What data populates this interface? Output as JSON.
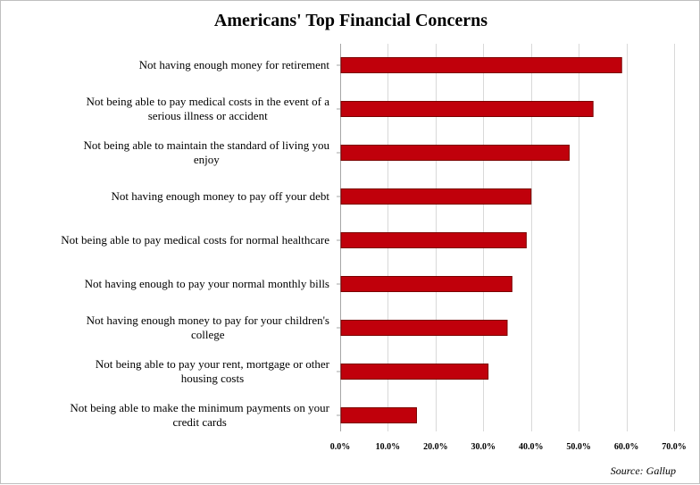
{
  "chart_data": {
    "type": "bar",
    "orientation": "horizontal",
    "title": "Americans' Top Financial Concerns",
    "source": "Source: Gallup",
    "categories": [
      [
        "Not having enough money for retirement"
      ],
      [
        "Not being able to pay medical costs in the event of a",
        "serious illness or accident"
      ],
      [
        "Not being able to maintain the standard of living you",
        "enjoy"
      ],
      [
        "Not having enough money to pay off your debt"
      ],
      [
        "Not being able to pay medical costs for normal healthcare"
      ],
      [
        "Not having enough to pay your normal monthly bills"
      ],
      [
        "Not having enough money to pay for your children's",
        "college"
      ],
      [
        "Not being able to pay your rent, mortgage or other",
        "housing costs"
      ],
      [
        "Not being able to make the minimum payments on your",
        "credit cards"
      ]
    ],
    "values": [
      59,
      53,
      48,
      40,
      39,
      36,
      35,
      31,
      16
    ],
    "xlim": [
      0,
      70
    ],
    "xticks": [
      0,
      10,
      20,
      30,
      40,
      50,
      60,
      70
    ],
    "xtick_labels": [
      "0.0%",
      "10.0%",
      "20.0%",
      "30.0%",
      "40.0%",
      "50.0%",
      "60.0%",
      "70.0%"
    ],
    "grid": true,
    "bar_color": "#c0000b",
    "bar_edge_color": "#7a0000"
  }
}
